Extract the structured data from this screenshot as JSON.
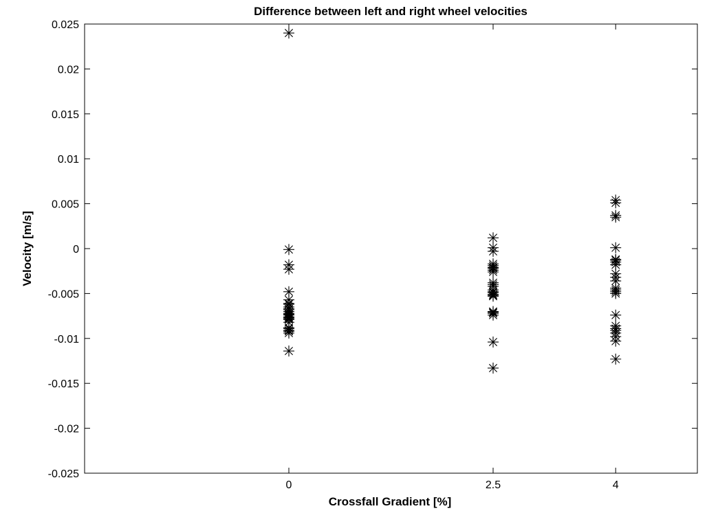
{
  "chart_data": {
    "type": "scatter",
    "title": "Difference between left and right wheel velocities",
    "xlabel": "Crossfall Gradient [%]",
    "ylabel": "Velocity [m/s]",
    "xlim": [
      -2.5,
      5.0
    ],
    "ylim": [
      -0.025,
      0.025
    ],
    "xticks": [
      0,
      2.5,
      4
    ],
    "xtick_labels": [
      "0",
      "2.5",
      "4"
    ],
    "yticks": [
      -0.025,
      -0.02,
      -0.015,
      -0.01,
      -0.005,
      0,
      0.005,
      0.01,
      0.015,
      0.02,
      0.025
    ],
    "ytick_labels": [
      "-0.025",
      "-0.02",
      "-0.015",
      "-0.01",
      "-0.005",
      "0",
      "0.005",
      "0.01",
      "0.015",
      "0.02",
      "0.025"
    ],
    "marker": "asterisk",
    "marker_color": "#000000",
    "grid": false,
    "series": [
      {
        "x": [
          0,
          0,
          0,
          0,
          0,
          0,
          0,
          0,
          0,
          0,
          0,
          0,
          0,
          0,
          0,
          0,
          0,
          0,
          0,
          0,
          0,
          0,
          0,
          0,
          0,
          0
        ],
        "y": [
          0.024,
          -0.0001,
          -0.0018,
          -0.0023,
          -0.0048,
          -0.0057,
          -0.0061,
          -0.0065,
          -0.0068,
          -0.007,
          -0.0072,
          -0.0074,
          -0.0076,
          -0.0077,
          -0.0078,
          -0.0079,
          -0.0082,
          -0.0089,
          -0.0091,
          -0.0092,
          -0.0094,
          -0.0114,
          -0.0062,
          -0.0067,
          -0.0073,
          -0.0088
        ]
      },
      {
        "x": [
          2.5,
          2.5,
          2.5,
          2.5,
          2.5,
          2.5,
          2.5,
          2.5,
          2.5,
          2.5,
          2.5,
          2.5,
          2.5,
          2.5,
          2.5,
          2.5,
          2.5,
          2.5,
          2.5,
          2.5,
          2.5,
          2.5,
          2.5,
          2.5
        ],
        "y": [
          0.0012,
          0.0001,
          -0.0003,
          -0.0017,
          -0.0019,
          -0.0021,
          -0.0024,
          -0.0026,
          -0.004,
          -0.0042,
          -0.0048,
          -0.0049,
          -0.0051,
          -0.0053,
          -0.007,
          -0.0072,
          -0.0074,
          -0.0104,
          -0.0133,
          -0.0038,
          -0.0022,
          -0.0052,
          -0.0071,
          -0.0046
        ]
      },
      {
        "x": [
          4,
          4,
          4,
          4,
          4,
          4,
          4,
          4,
          4,
          4,
          4,
          4,
          4,
          4,
          4,
          4,
          4,
          4,
          4,
          4,
          4,
          4,
          4,
          4
        ],
        "y": [
          0.0054,
          0.0051,
          0.0037,
          0.0035,
          0.0001,
          -0.0012,
          -0.0013,
          -0.0018,
          -0.0028,
          -0.0032,
          -0.0046,
          -0.0048,
          -0.005,
          -0.0074,
          -0.0086,
          -0.0091,
          -0.0094,
          -0.0098,
          -0.0103,
          -0.0123,
          -0.0015,
          -0.0044,
          -0.0089,
          -0.0036
        ]
      }
    ]
  }
}
